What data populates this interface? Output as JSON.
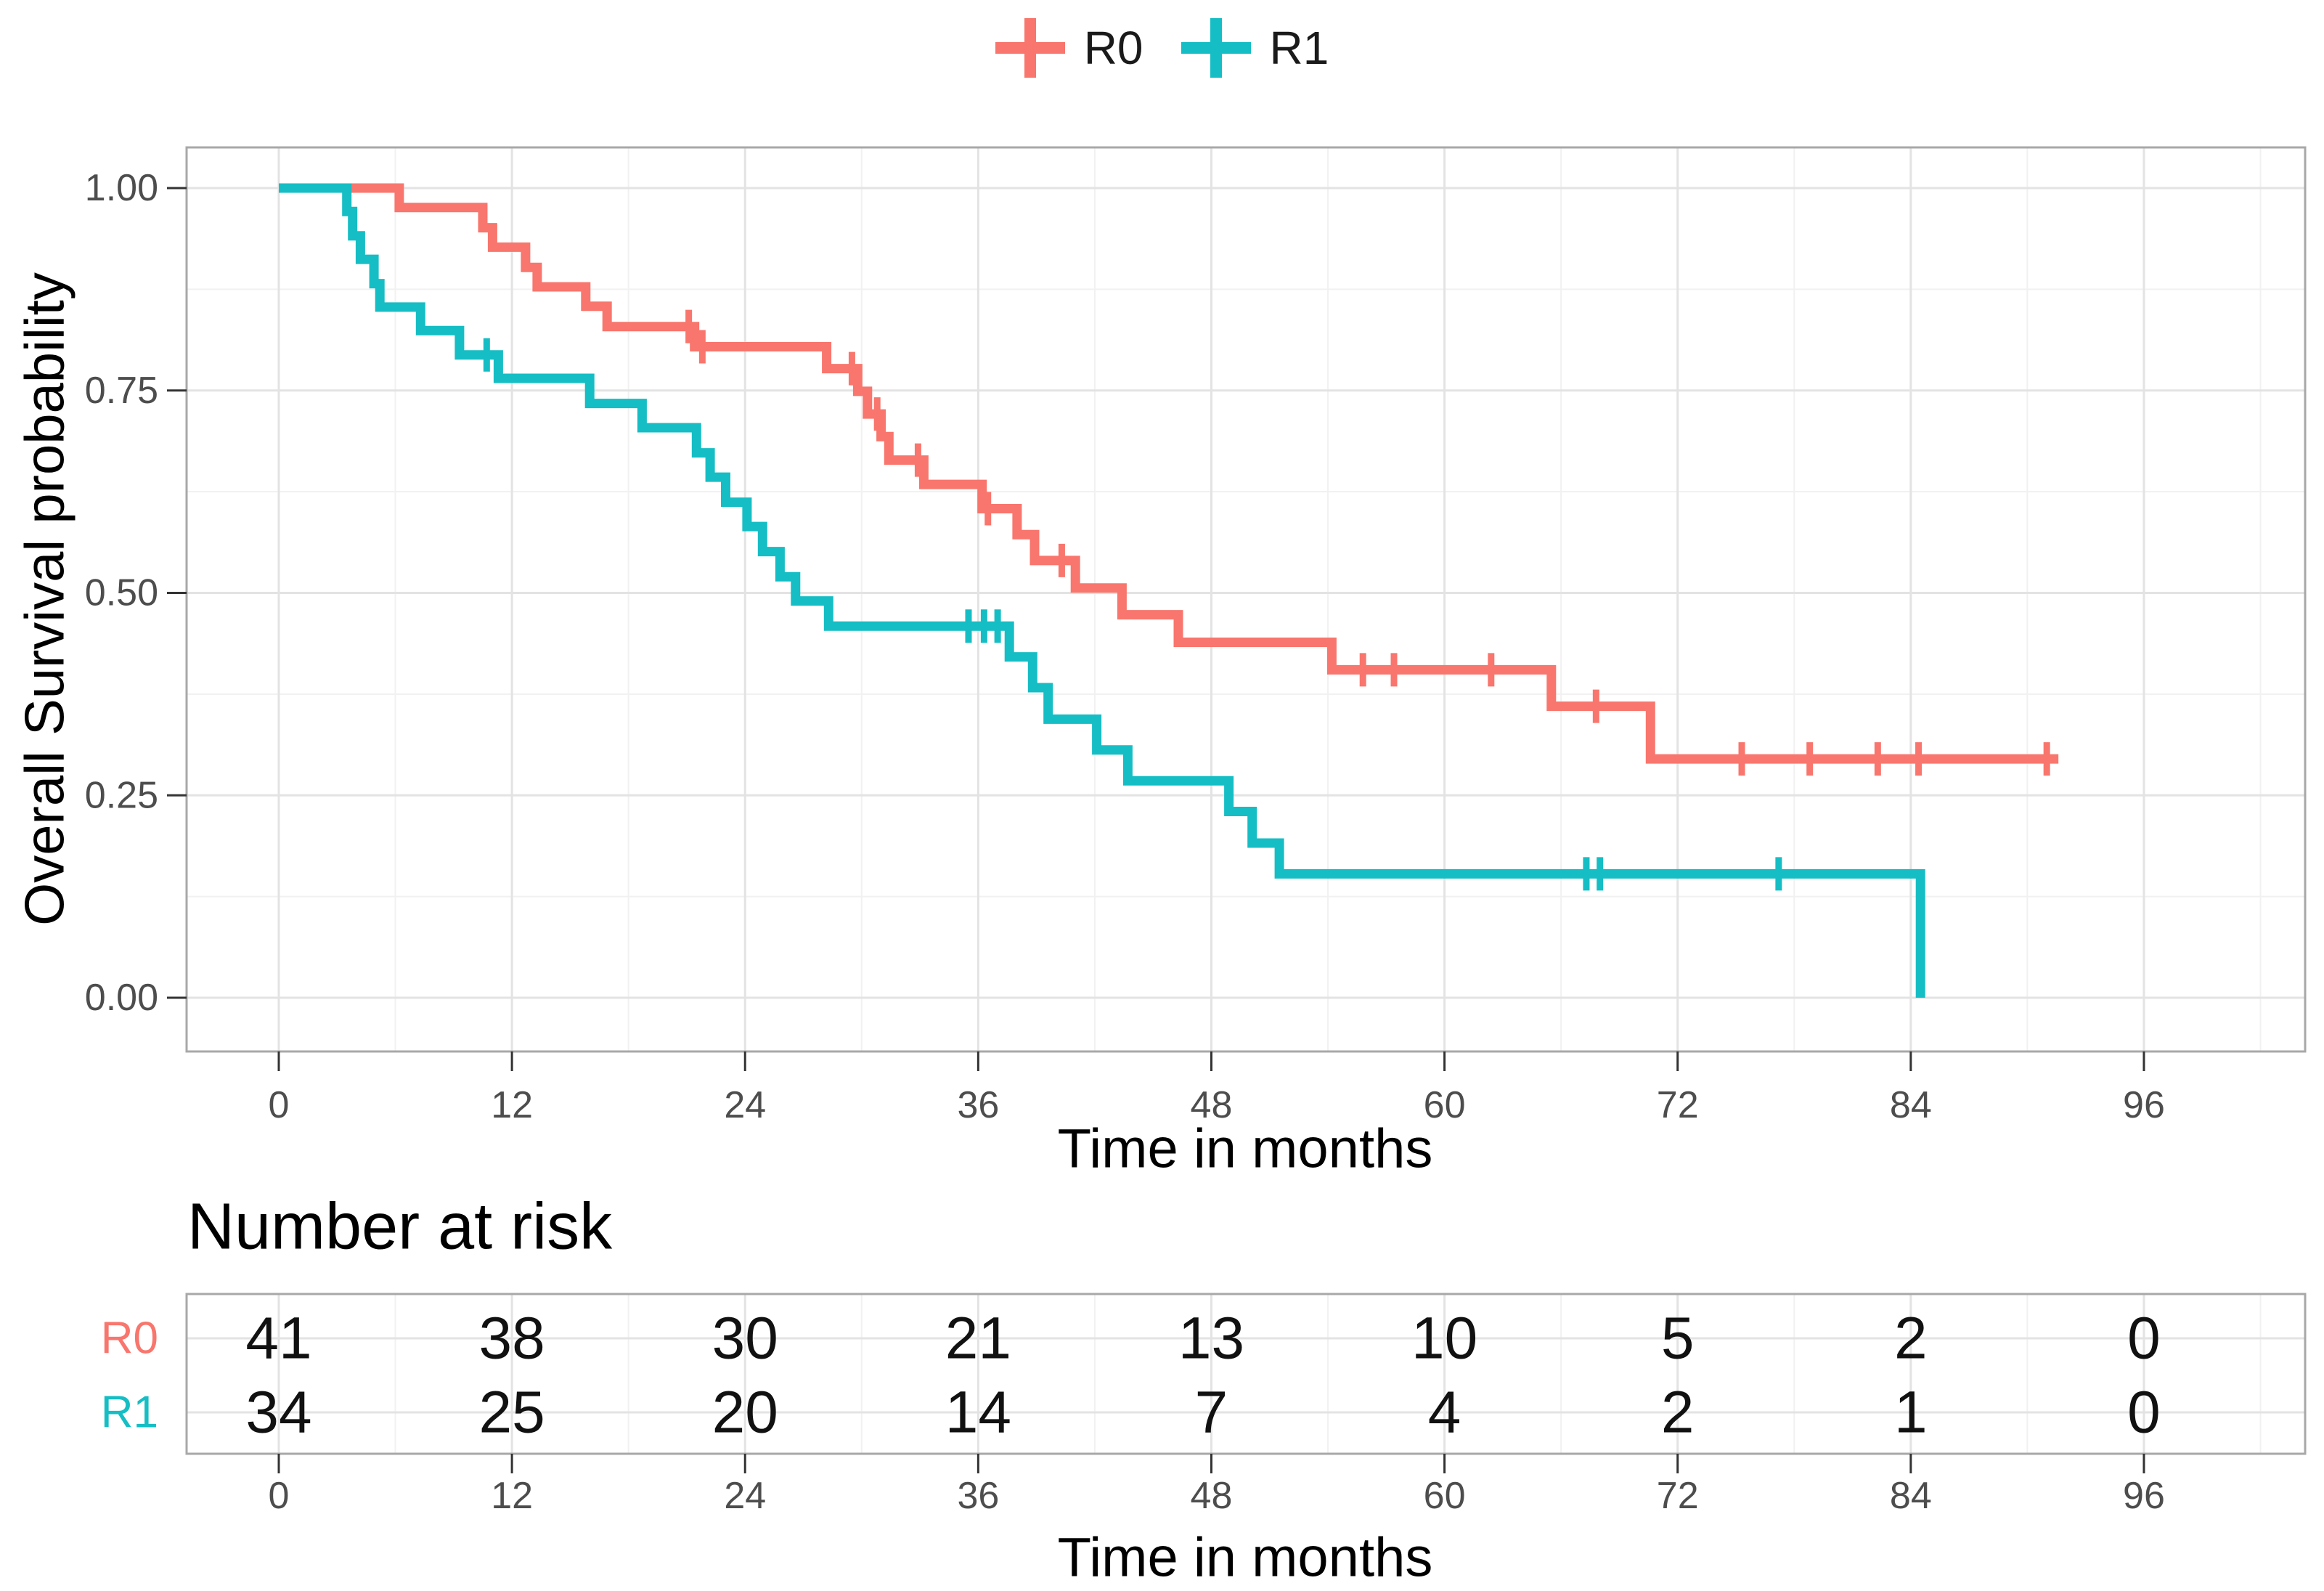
{
  "legend": {
    "items": [
      {
        "label": "R0",
        "color": "#F8766D"
      },
      {
        "label": "R1",
        "color": "#15BEC4"
      }
    ]
  },
  "main_plot": {
    "y_axis": {
      "title": "Overall Survival probability",
      "tick_labels": [
        "1.00",
        "0.75",
        "0.50",
        "0.25",
        "0.00"
      ],
      "tick_values": [
        1.0,
        0.75,
        0.5,
        0.25,
        0.0
      ],
      "minor_tick_values": [
        0.875,
        0.625,
        0.375,
        0.125
      ]
    },
    "x_axis": {
      "title": "Time in months",
      "tick_labels": [
        "0",
        "12",
        "24",
        "36",
        "48",
        "60",
        "72",
        "84",
        "96"
      ],
      "tick_values": [
        0,
        12,
        24,
        36,
        48,
        60,
        72,
        84,
        96
      ],
      "minor_tick_values": [
        6,
        18,
        30,
        42,
        54,
        66,
        78,
        90,
        102
      ]
    }
  },
  "risk_table": {
    "title": "Number at risk",
    "x_axis": {
      "title": "Time in months",
      "tick_labels": [
        "0",
        "12",
        "24",
        "36",
        "48",
        "60",
        "72",
        "84",
        "96"
      ],
      "tick_values": [
        0,
        12,
        24,
        36,
        48,
        60,
        72,
        84,
        96
      ],
      "minor_tick_values": [
        6,
        18,
        30,
        42,
        54,
        66,
        78,
        90,
        102
      ]
    },
    "rows": [
      {
        "label": "R0",
        "color": "#F8766D",
        "values": [
          "41",
          "38",
          "30",
          "21",
          "13",
          "10",
          "5",
          "2",
          "0"
        ]
      },
      {
        "label": "R1",
        "color": "#15BEC4",
        "values": [
          "34",
          "25",
          "20",
          "14",
          "7",
          "4",
          "2",
          "1",
          "0"
        ]
      }
    ]
  },
  "chart_data": {
    "type": "line",
    "subtype": "kaplan-meier-step",
    "title": "",
    "xlabel": "Time in months",
    "ylabel": "Overall Survival probability",
    "xlim": [
      0,
      96
    ],
    "ylim": [
      0,
      1
    ],
    "grid": true,
    "legend_position": "top",
    "series": [
      {
        "name": "R0",
        "color": "#F8766D",
        "points": [
          [
            0,
            1.0
          ],
          [
            6.2,
            0.976
          ],
          [
            10.5,
            0.951
          ],
          [
            11.0,
            0.927
          ],
          [
            12.7,
            0.902
          ],
          [
            13.3,
            0.878
          ],
          [
            15.8,
            0.854
          ],
          [
            16.9,
            0.829
          ],
          [
            21.4,
            0.804
          ],
          [
            28.2,
            0.777
          ],
          [
            29.8,
            0.749
          ],
          [
            30.3,
            0.721
          ],
          [
            31.0,
            0.693
          ],
          [
            31.4,
            0.664
          ],
          [
            33.2,
            0.634
          ],
          [
            36.2,
            0.604
          ],
          [
            38.0,
            0.572
          ],
          [
            38.9,
            0.54
          ],
          [
            41.0,
            0.506
          ],
          [
            43.4,
            0.473
          ],
          [
            46.3,
            0.439
          ],
          [
            54.2,
            0.405
          ],
          [
            65.5,
            0.36
          ],
          [
            70.6,
            0.295
          ]
        ],
        "censor_times": [
          21.1,
          21.8,
          29.5,
          30.8,
          32.9,
          36.5,
          40.3,
          55.8,
          57.4,
          62.4,
          67.8,
          75.3,
          78.8,
          82.3,
          84.4,
          91.0
        ],
        "end_time": 91.6
      },
      {
        "name": "R1",
        "color": "#15BEC4",
        "points": [
          [
            0,
            1.0
          ],
          [
            3.5,
            0.971
          ],
          [
            3.8,
            0.941
          ],
          [
            4.2,
            0.912
          ],
          [
            4.9,
            0.882
          ],
          [
            5.2,
            0.853
          ],
          [
            7.3,
            0.824
          ],
          [
            9.3,
            0.794
          ],
          [
            11.3,
            0.765
          ],
          [
            16.0,
            0.734
          ],
          [
            18.7,
            0.704
          ],
          [
            21.5,
            0.673
          ],
          [
            22.2,
            0.643
          ],
          [
            23.0,
            0.612
          ],
          [
            24.1,
            0.582
          ],
          [
            24.9,
            0.551
          ],
          [
            25.8,
            0.52
          ],
          [
            26.6,
            0.49
          ],
          [
            28.3,
            0.459
          ],
          [
            37.6,
            0.421
          ],
          [
            38.8,
            0.383
          ],
          [
            39.6,
            0.344
          ],
          [
            42.1,
            0.306
          ],
          [
            43.7,
            0.268
          ],
          [
            48.9,
            0.23
          ],
          [
            50.1,
            0.191
          ],
          [
            51.5,
            0.153
          ],
          [
            84.5,
            0.0
          ]
        ],
        "censor_times": [
          10.7,
          35.5,
          36.3,
          37.0,
          67.3,
          68.0,
          77.2
        ],
        "end_time": 84.5
      }
    ],
    "number_at_risk": {
      "times": [
        0,
        12,
        24,
        36,
        48,
        60,
        72,
        84,
        96
      ],
      "R0": [
        41,
        38,
        30,
        21,
        13,
        10,
        5,
        2,
        0
      ],
      "R1": [
        34,
        25,
        20,
        14,
        7,
        4,
        2,
        1,
        0
      ]
    }
  }
}
